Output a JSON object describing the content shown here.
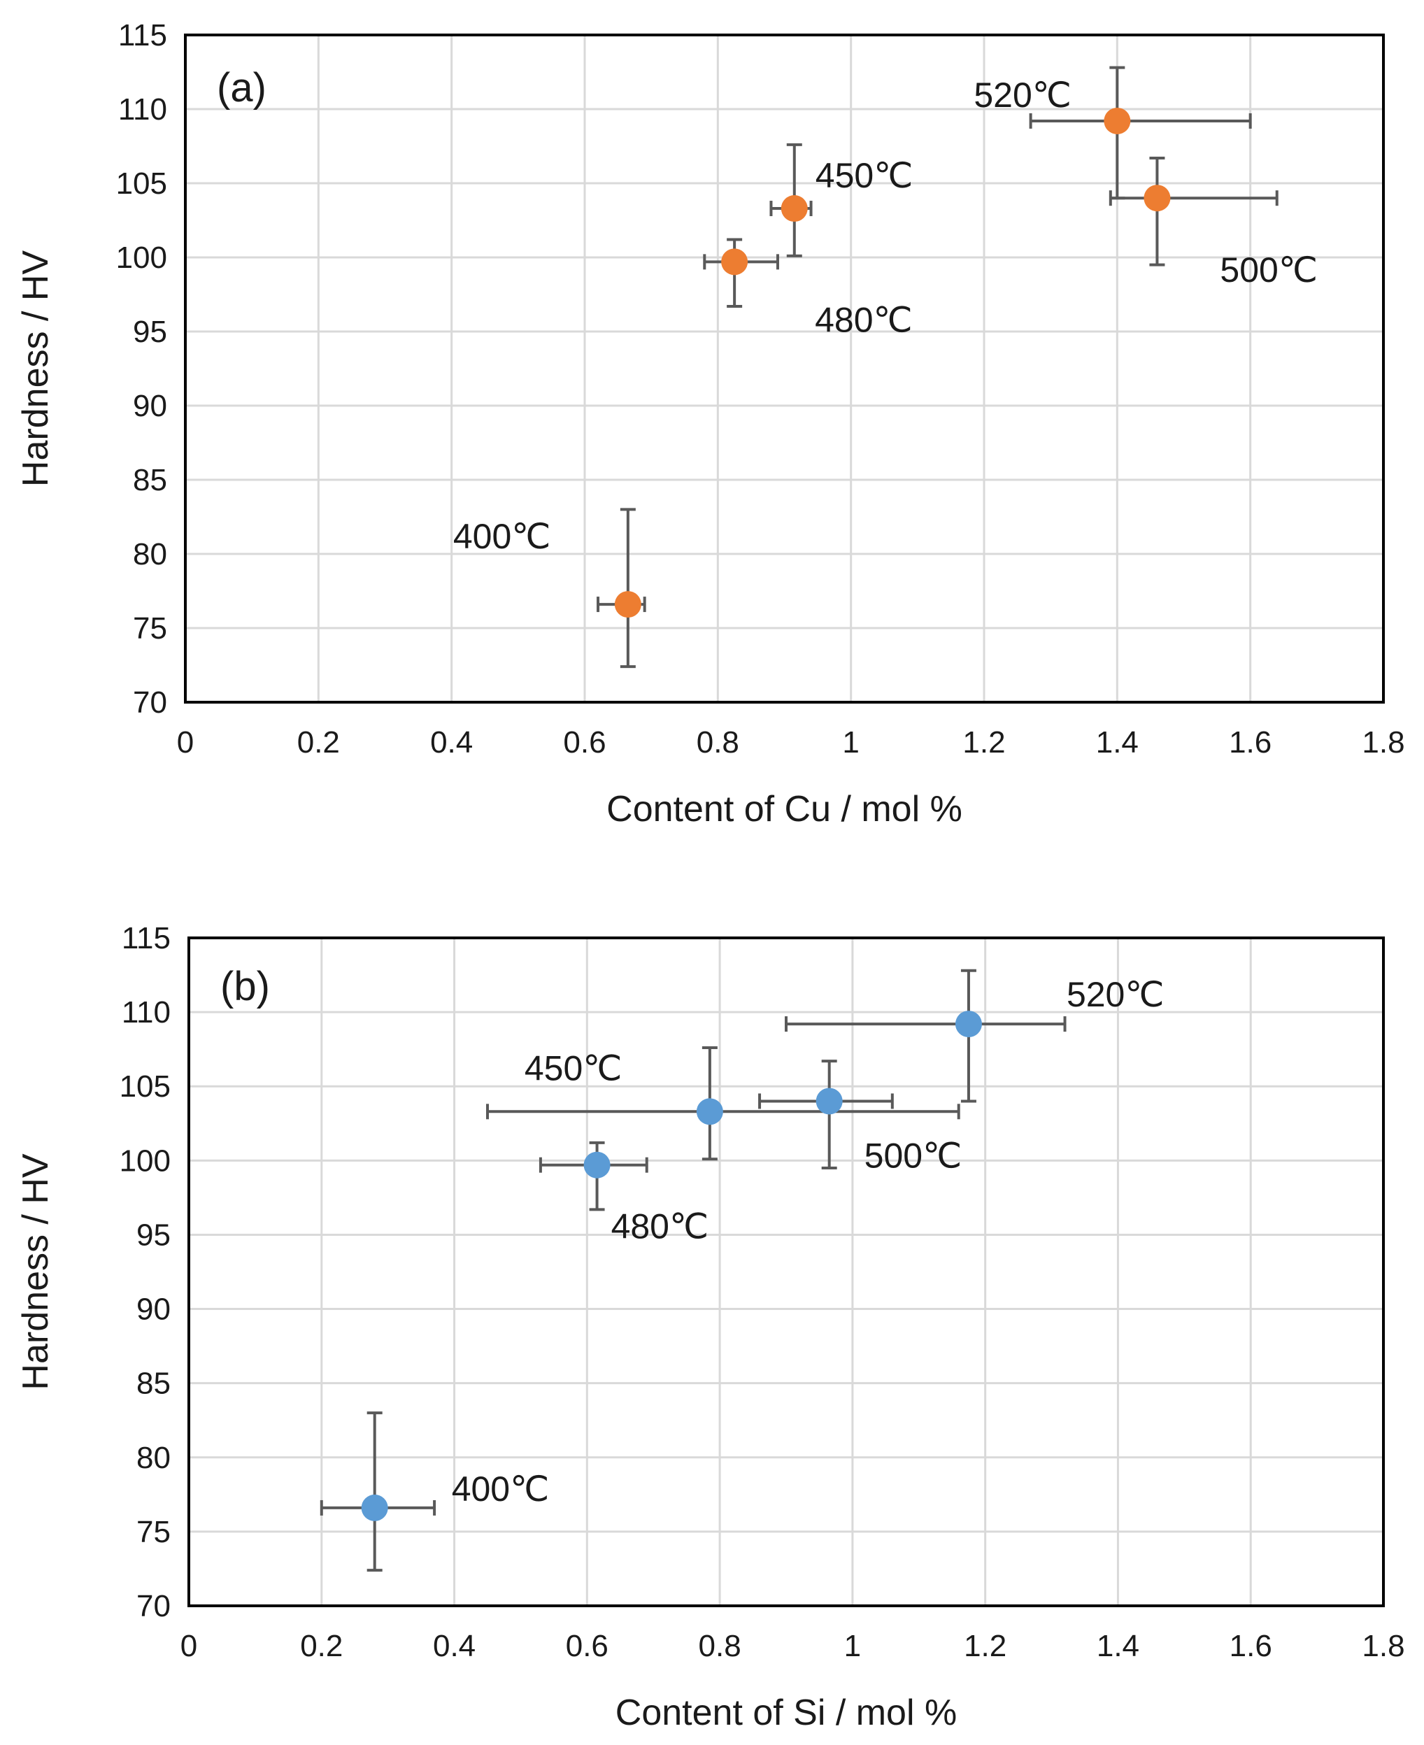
{
  "chart_data": [
    {
      "type": "scatter",
      "label": "(a)",
      "xlabel": "Content of Cu / mol %",
      "ylabel": "Hardness / HV",
      "xlim": [
        0,
        1.8
      ],
      "ylim": [
        70,
        115
      ],
      "x_ticks": [
        0,
        0.2,
        0.4,
        0.6,
        0.8,
        1,
        1.2,
        1.4,
        1.6,
        1.8
      ],
      "x_tick_labels": [
        "0",
        "0.2",
        "0.4",
        "0.6",
        "0.8",
        "1",
        "1.2",
        "1.4",
        "1.6",
        "1.8"
      ],
      "y_ticks": [
        70,
        75,
        80,
        85,
        90,
        95,
        100,
        105,
        110,
        115
      ],
      "y_tick_labels": [
        "70",
        "75",
        "80",
        "85",
        "90",
        "95",
        "100",
        "105",
        "110",
        "115"
      ],
      "grid": true,
      "marker_color": "#ED7D31",
      "points": [
        {
          "label": "400℃",
          "x": 0.665,
          "y": 76.6,
          "xerr_low": 0.62,
          "xerr_high": 0.69,
          "yerr_low": 72.4,
          "yerr_high": 83.0
        },
        {
          "label": "450℃",
          "x": 0.915,
          "y": 103.3,
          "xerr_low": 0.88,
          "xerr_high": 0.94,
          "yerr_low": 100.1,
          "yerr_high": 107.6
        },
        {
          "label": "480℃",
          "x": 0.825,
          "y": 99.7,
          "xerr_low": 0.78,
          "xerr_high": 0.89,
          "yerr_low": 96.7,
          "yerr_high": 101.2
        },
        {
          "label": "500℃",
          "x": 1.46,
          "y": 104.0,
          "xerr_low": 1.39,
          "xerr_high": 1.64,
          "yerr_low": 99.5,
          "yerr_high": 106.7
        },
        {
          "label": "520℃",
          "x": 1.4,
          "y": 109.2,
          "xerr_low": 1.27,
          "xerr_high": 1.6,
          "yerr_low": 104.0,
          "yerr_high": 112.8
        }
      ]
    },
    {
      "type": "scatter",
      "label": "(b)",
      "xlabel": "Content of Si / mol %",
      "ylabel": "Hardness / HV",
      "xlim": [
        0,
        1.8
      ],
      "ylim": [
        70,
        115
      ],
      "x_ticks": [
        0,
        0.2,
        0.4,
        0.6,
        0.8,
        1,
        1.2,
        1.4,
        1.6,
        1.8
      ],
      "x_tick_labels": [
        "0",
        "0.2",
        "0.4",
        "0.6",
        "0.8",
        "1",
        "1.2",
        "1.4",
        "1.6",
        "1.8"
      ],
      "y_ticks": [
        70,
        75,
        80,
        85,
        90,
        95,
        100,
        105,
        110,
        115
      ],
      "y_tick_labels": [
        "70",
        "75",
        "80",
        "85",
        "90",
        "95",
        "100",
        "105",
        "110",
        "115"
      ],
      "grid": true,
      "marker_color": "#5B9BD5",
      "points": [
        {
          "label": "400℃",
          "x": 0.28,
          "y": 76.6,
          "xerr_low": 0.2,
          "xerr_high": 0.37,
          "yerr_low": 72.4,
          "yerr_high": 83.0
        },
        {
          "label": "450℃",
          "x": 0.785,
          "y": 103.3,
          "xerr_low": 0.45,
          "xerr_high": 1.16,
          "yerr_low": 100.1,
          "yerr_high": 107.6
        },
        {
          "label": "480℃",
          "x": 0.615,
          "y": 99.7,
          "xerr_low": 0.53,
          "xerr_high": 0.69,
          "yerr_low": 96.7,
          "yerr_high": 101.2
        },
        {
          "label": "500℃",
          "x": 0.965,
          "y": 104.0,
          "xerr_low": 0.86,
          "xerr_high": 1.06,
          "yerr_low": 99.5,
          "yerr_high": 106.7
        },
        {
          "label": "520℃",
          "x": 1.175,
          "y": 109.2,
          "xerr_low": 0.9,
          "xerr_high": 1.32,
          "yerr_low": 104.0,
          "yerr_high": 112.8
        }
      ]
    }
  ]
}
